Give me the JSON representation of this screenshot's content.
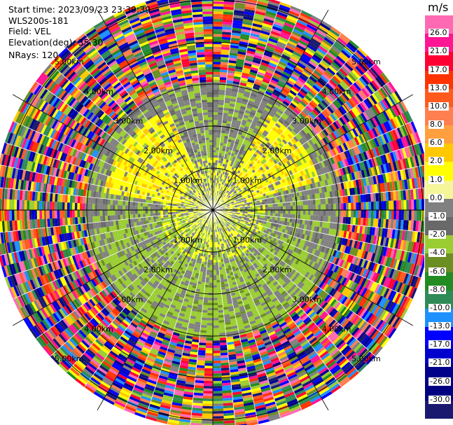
{
  "info": {
    "start_time": "Start time: 2023/09/23 23:39:39",
    "instrument": "WLS200s-181",
    "field": "Field: VEL",
    "elevation": "Elevation(deg): 35.30",
    "nrays": "NRays: 120"
  },
  "colorbar": {
    "unit": "m/s",
    "labels": [
      "26.0",
      "21.0",
      "17.0",
      "13.0",
      "10.0",
      "8.0",
      "6.0",
      "2.0",
      "1.0",
      "0.0",
      "-1.0",
      "-2.0",
      "-4.0",
      "-6.0",
      "-8.0",
      "-10.0",
      "-13.0",
      "-17.0",
      "-21.0",
      "-26.0",
      "-30.0"
    ],
    "colors": [
      "#ff69b4",
      "#ff1493",
      "#ff0033",
      "#ff3300",
      "#ff5a1e",
      "#ff7f50",
      "#ff9f40",
      "#ffc800",
      "#ffff00",
      "#f5f59a",
      "#808080",
      "#696969",
      "#9acd32",
      "#6b8e23",
      "#228b22",
      "#2e8b57",
      "#1e90ff",
      "#0000ff",
      "#0000cd",
      "#00008b",
      "#000080",
      "#191970"
    ]
  },
  "chart_data": {
    "type": "heatmap",
    "subtype": "polar PPI scan (velocity)",
    "field": "VEL",
    "unit": "m/s",
    "nrays": 120,
    "range_rings_km": [
      1.0,
      2.0,
      3.0,
      4.0,
      5.0
    ],
    "ring_labels": [
      "1.00km",
      "2.00km",
      "3.00km",
      "4.00km",
      "5.00km"
    ],
    "value_range": [
      -30.0,
      26.0
    ],
    "noise_beyond_km": 3.0
  }
}
